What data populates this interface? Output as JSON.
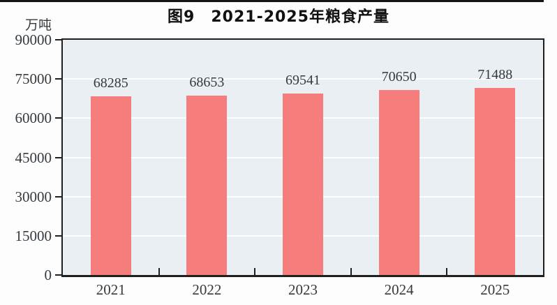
{
  "chart_data": {
    "type": "bar",
    "title": "图9　2021-2025年粮食产量",
    "unit_label": "万吨",
    "categories": [
      "2021",
      "2022",
      "2023",
      "2024",
      "2025"
    ],
    "values": [
      68285,
      68653,
      69541,
      70650,
      71488
    ],
    "ylabel": "万吨",
    "xlabel": "",
    "ylim": [
      0,
      90000
    ],
    "y_ticks": [
      0,
      15000,
      30000,
      45000,
      60000,
      75000,
      90000
    ],
    "grid": true,
    "legend": "none",
    "colors": {
      "bar": "#f57e7d",
      "plot_background": "#e9eff3",
      "gridline": "#ffffff",
      "axis": "#1f1f1f",
      "label_text": "#333a40",
      "title_text": "#111111"
    }
  }
}
